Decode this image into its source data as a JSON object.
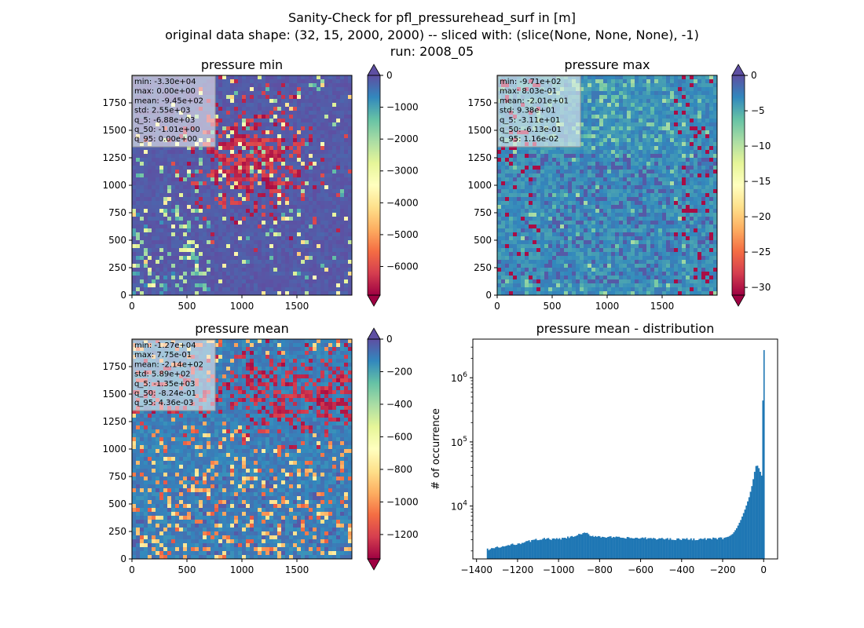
{
  "suptitle": {
    "line1": "Sanity-Check for pfl_pressurehead_surf in [m]",
    "line2": "original data shape: (32, 15, 2000, 2000) -- sliced with: (slice(None, None, None), -1)",
    "line3": "run: 2008_05"
  },
  "colors": {
    "low": "#9e0142",
    "high": "#5e4fa2",
    "mid": "#ffffbf",
    "histogram_bar": "#1f77b4"
  },
  "chart_data": [
    {
      "type": "heatmap",
      "title": "pressure min",
      "colormap": "Spectral",
      "xticks": [
        0,
        500,
        1000,
        1500
      ],
      "yticks": [
        0,
        250,
        500,
        750,
        1000,
        1250,
        1500,
        1750
      ],
      "xlim": [
        0,
        2000
      ],
      "ylim": [
        0,
        2000
      ],
      "colorbar": {
        "ticks": [
          0,
          -1000,
          -2000,
          -3000,
          -4000,
          -5000,
          -6000
        ],
        "vmin": -6900,
        "vmax": 0,
        "extend": "both"
      },
      "stats": [
        "min: -3.30e+04",
        "max: 0.00e+00",
        "mean: -9.45e+02",
        "std: 2.55e+03",
        "q_5: -6.88e+03",
        "q_50: -1.01e+00",
        "q_95: 0.00e+00"
      ]
    },
    {
      "type": "heatmap",
      "title": "pressure max",
      "colormap": "Spectral",
      "xticks": [
        0,
        500,
        1000,
        1500
      ],
      "yticks": [
        0,
        250,
        500,
        750,
        1000,
        1250,
        1500,
        1750
      ],
      "xlim": [
        0,
        2000
      ],
      "ylim": [
        0,
        2000
      ],
      "colorbar": {
        "ticks": [
          0,
          -5,
          -10,
          -15,
          -20,
          -25,
          -30
        ],
        "vmin": -31.1,
        "vmax": 0.0116,
        "extend": "both"
      },
      "stats": [
        "min: -9.71e+02",
        "max: 8.03e-01",
        "mean: -2.01e+01",
        "std: 9.38e+01",
        "q_5: -3.11e+01",
        "q_50: -6.13e-01",
        "q_95: 1.16e-02"
      ]
    },
    {
      "type": "heatmap",
      "title": "pressure mean",
      "colormap": "Spectral",
      "xticks": [
        0,
        500,
        1000,
        1500
      ],
      "yticks": [
        0,
        250,
        500,
        750,
        1000,
        1250,
        1500,
        1750
      ],
      "xlim": [
        0,
        2000
      ],
      "ylim": [
        0,
        2000
      ],
      "colorbar": {
        "ticks": [
          0,
          -200,
          -400,
          -600,
          -800,
          -1000,
          -1200
        ],
        "vmin": -1350,
        "vmax": 0.00436,
        "extend": "both"
      },
      "stats": [
        "min: -1.27e+04",
        "max: 7.75e-01",
        "mean: -2.14e+02",
        "std: 5.89e+02",
        "q_5: -1.35e+03",
        "q_50: -8.24e-01",
        "q_95: 4.36e-03"
      ]
    },
    {
      "type": "bar",
      "title": "pressure mean - distribution",
      "ylabel": "# of occurrence",
      "yscale": "log",
      "xlim": [
        -1418,
        68
      ],
      "ylim": [
        1500,
        4000000
      ],
      "xticks": [
        -1400,
        -1200,
        -1000,
        -800,
        -600,
        -400,
        -200,
        0
      ],
      "xticklabels": [
        "−1400",
        "−1200",
        "−1000",
        "−800",
        "−600",
        "−400",
        "−200",
        "0"
      ],
      "yticks": [
        10000,
        100000,
        1000000
      ],
      "yticklabels": [
        "10^4",
        "10^5",
        "10^6"
      ],
      "bin_width": 6.75,
      "profile": [
        [
          -1350,
          2100
        ],
        [
          -1320,
          2200
        ],
        [
          -1280,
          2300
        ],
        [
          -1240,
          2450
        ],
        [
          -1200,
          2600
        ],
        [
          -1160,
          2750
        ],
        [
          -1120,
          2950
        ],
        [
          -1080,
          3100
        ],
        [
          -1040,
          3050
        ],
        [
          -1000,
          3050
        ],
        [
          -960,
          3200
        ],
        [
          -920,
          3400
        ],
        [
          -880,
          3750
        ],
        [
          -860,
          3700
        ],
        [
          -840,
          3450
        ],
        [
          -800,
          3350
        ],
        [
          -700,
          3200
        ],
        [
          -600,
          3150
        ],
        [
          -500,
          3100
        ],
        [
          -400,
          3050
        ],
        [
          -300,
          3050
        ],
        [
          -200,
          3150
        ],
        [
          -170,
          3350
        ],
        [
          -150,
          3700
        ],
        [
          -130,
          4600
        ],
        [
          -110,
          6200
        ],
        [
          -90,
          9000
        ],
        [
          -70,
          14000
        ],
        [
          -55,
          22000
        ],
        [
          -45,
          33000
        ],
        [
          -35,
          45000
        ],
        [
          -25,
          40000
        ],
        [
          -15,
          33000
        ],
        [
          -7,
          28000
        ],
        [
          -1,
          2700000
        ]
      ]
    }
  ]
}
